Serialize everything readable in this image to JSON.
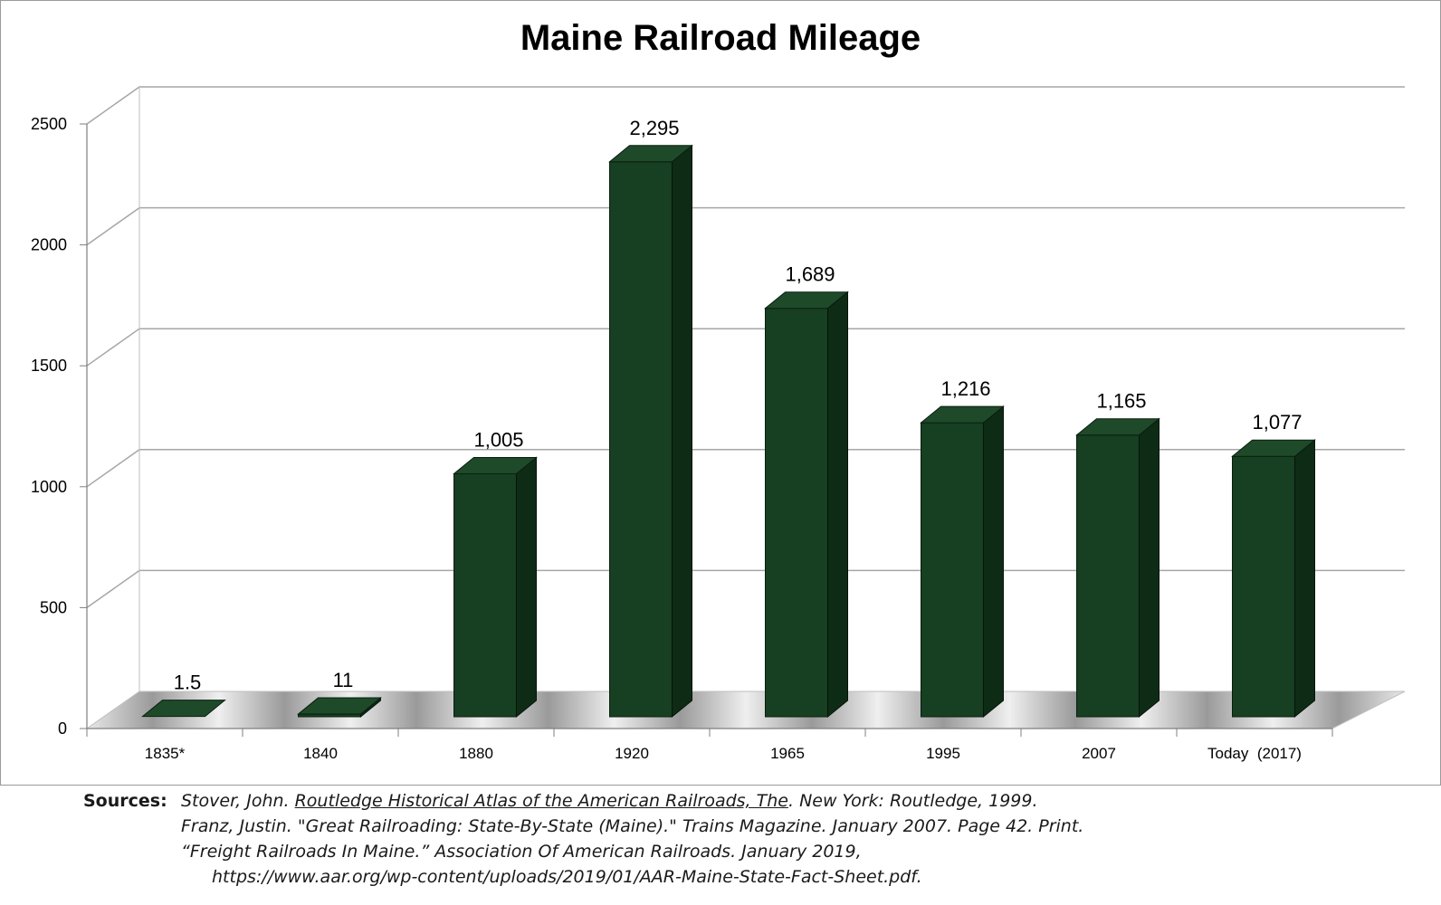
{
  "chart_data": {
    "type": "bar",
    "title": "Maine Railroad Mileage",
    "xlabel": "",
    "ylabel": "",
    "categories": [
      "1835*",
      "1840",
      "1880",
      "1920",
      "1965",
      "1995",
      "2007",
      "Today  (2017)"
    ],
    "values": [
      1.5,
      11,
      1005,
      2295,
      1689,
      1216,
      1165,
      1077
    ],
    "data_labels": [
      "1.5",
      "11",
      "1,005",
      "2,295",
      "1,689",
      "1,216",
      "1,165",
      "1,077"
    ],
    "yticks": [
      "0",
      "500",
      "1000",
      "1500",
      "2000",
      "2500"
    ],
    "ylim": [
      0,
      2500
    ],
    "grid": true,
    "legend": "none",
    "style": "3d-column",
    "colors": {
      "bar_front": "#173f22",
      "bar_top": "#1e4a2a",
      "bar_side": "#0e2b16",
      "gridline": "#a6a6a6"
    }
  },
  "sources": {
    "heading": "Sources:",
    "entry1": {
      "pre": "Stover, John. ",
      "title": "Routledge Historical Atlas of the American Railroads, The",
      "post": ". New York: Routledge, 1999."
    },
    "entry2": "Franz, Justin. \"Great Railroading: State-By-State (Maine).\" Trains Magazine. January 2007. Page 42. Print.",
    "entry3": "“Freight Railroads In Maine.” Association Of American Railroads. January 2019,",
    "entry3_url": "https://www.aar.org/wp-content/uploads/2019/01/AAR-Maine-State-Fact-Sheet.pdf."
  }
}
